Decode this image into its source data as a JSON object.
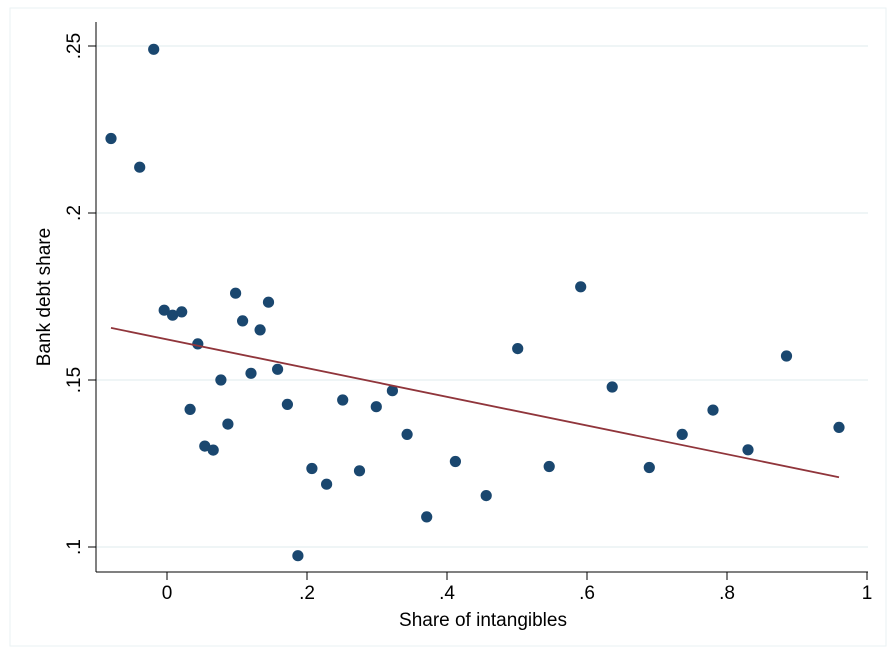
{
  "chart_data": {
    "type": "scatter",
    "title": "",
    "xlabel": "Share of intangibles",
    "ylabel": "Bank debt share",
    "xlim": [
      -0.1,
      1.0
    ],
    "ylim": [
      0.093,
      0.252
    ],
    "xticks": [
      0,
      0.2,
      0.4,
      0.6,
      0.8,
      1
    ],
    "xtick_labels": [
      "0",
      ".2",
      ".4",
      ".6",
      ".8",
      "1"
    ],
    "yticks": [
      0.1,
      0.15,
      0.2,
      0.25
    ],
    "ytick_labels": [
      ".1",
      ".15",
      ".2",
      ".25"
    ],
    "grid": "horizontal",
    "legend": "none",
    "colors": {
      "points": "#1a476f",
      "fit_line": "#90353b",
      "grid": "#eaf2f3"
    },
    "series": [
      {
        "kind": "scatter",
        "points": [
          [
            -0.08,
            0.2223
          ],
          [
            -0.039,
            0.2137
          ],
          [
            -0.019,
            0.249
          ],
          [
            -0.004,
            0.1709
          ],
          [
            0.008,
            0.1694
          ],
          [
            0.021,
            0.1704
          ],
          [
            0.033,
            0.1412
          ],
          [
            0.044,
            0.1608
          ],
          [
            0.054,
            0.1302
          ],
          [
            0.066,
            0.129
          ],
          [
            0.077,
            0.15
          ],
          [
            0.087,
            0.1368
          ],
          [
            0.098,
            0.176
          ],
          [
            0.108,
            0.1677
          ],
          [
            0.12,
            0.152
          ],
          [
            0.133,
            0.165
          ],
          [
            0.145,
            0.1733
          ],
          [
            0.158,
            0.1532
          ],
          [
            0.172,
            0.1427
          ],
          [
            0.187,
            0.0974
          ],
          [
            0.207,
            0.1235
          ],
          [
            0.228,
            0.1188
          ],
          [
            0.251,
            0.144
          ],
          [
            0.275,
            0.1228
          ],
          [
            0.299,
            0.142
          ],
          [
            0.322,
            0.1468
          ],
          [
            0.343,
            0.1337
          ],
          [
            0.371,
            0.109
          ],
          [
            0.412,
            0.1256
          ],
          [
            0.456,
            0.1154
          ],
          [
            0.501,
            0.1594
          ],
          [
            0.546,
            0.1241
          ],
          [
            0.591,
            0.1779
          ],
          [
            0.636,
            0.1479
          ],
          [
            0.689,
            0.1238
          ],
          [
            0.736,
            0.1337
          ],
          [
            0.78,
            0.141
          ],
          [
            0.83,
            0.1291
          ],
          [
            0.885,
            0.1572
          ],
          [
            0.96,
            0.1358
          ]
        ]
      },
      {
        "kind": "linear-fit",
        "points": [
          [
            -0.08,
            0.1656
          ],
          [
            0.96,
            0.1209
          ]
        ]
      }
    ]
  }
}
